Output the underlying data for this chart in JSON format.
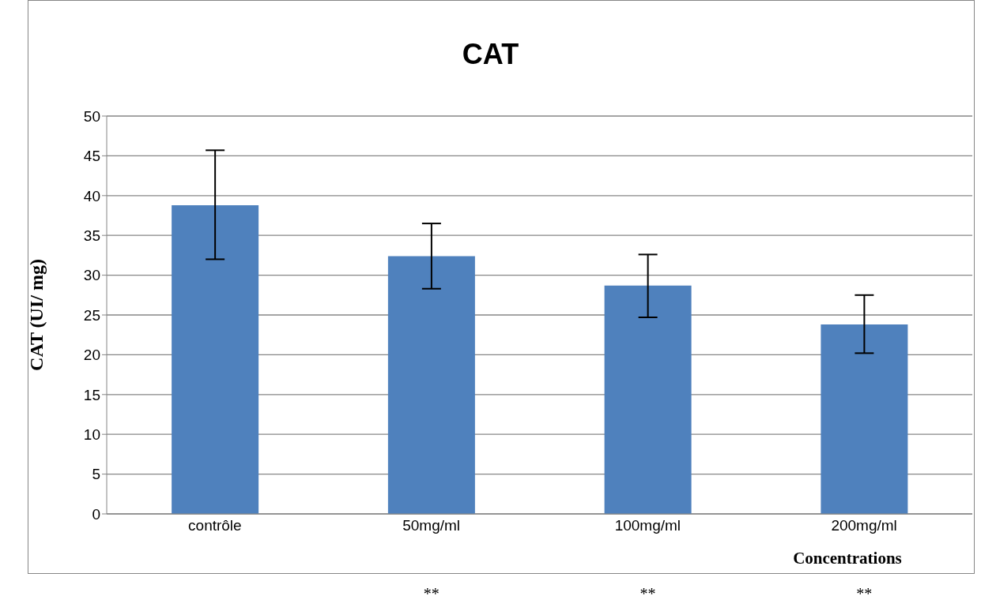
{
  "chart_data": {
    "type": "bar",
    "title": "CAT",
    "xlabel": "Concentrations",
    "ylabel": "CAT  (UI/ mg)",
    "categories": [
      "contrôle",
      "50mg/ml",
      "100mg/ml",
      "200mg/ml"
    ],
    "values": [
      38.8,
      32.4,
      28.7,
      23.8
    ],
    "color": "#4f81bd",
    "errors": [
      [
        32.0,
        45.7
      ],
      [
        28.3,
        36.5
      ],
      [
        24.7,
        32.6
      ],
      [
        20.2,
        27.5
      ]
    ],
    "ylim": [
      0,
      50
    ],
    "yticks": [
      0,
      5,
      10,
      15,
      20,
      25,
      30,
      35,
      40,
      45,
      50
    ],
    "grid": "y",
    "legend": false,
    "annotations": [
      "**",
      "**",
      "**"
    ]
  }
}
